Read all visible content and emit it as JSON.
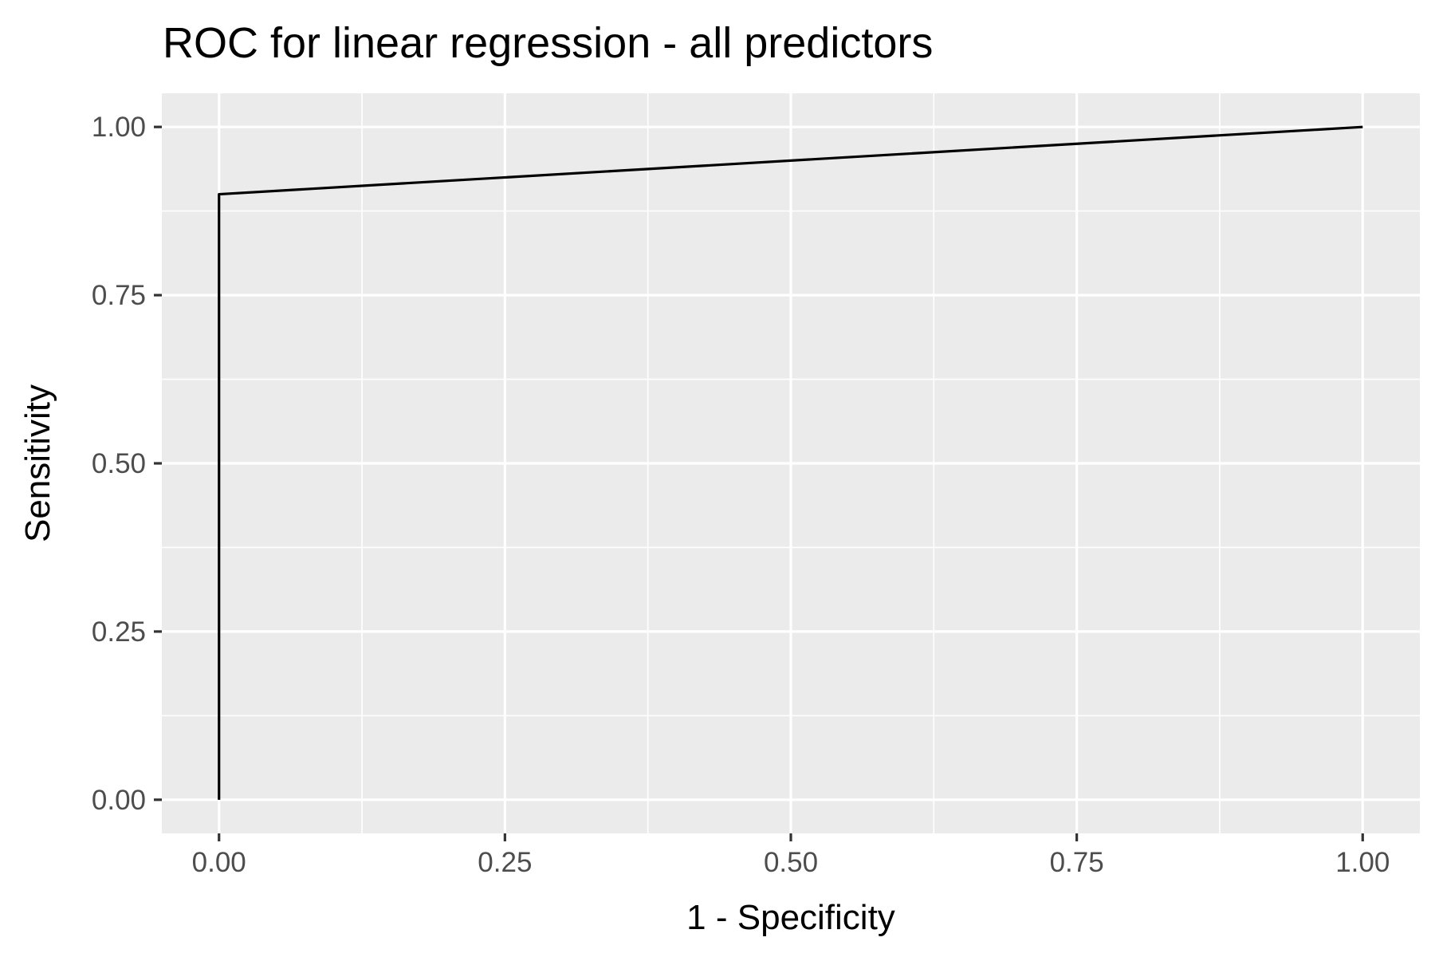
{
  "chart_data": {
    "type": "line",
    "title": "ROC for linear regression - all predictors",
    "xlabel": "1 - Specificity",
    "ylabel": "Sensitivity",
    "xlim": [
      -0.05,
      1.05
    ],
    "ylim": [
      -0.05,
      1.05
    ],
    "x_ticks": [
      0,
      0.25,
      0.5,
      0.75,
      1
    ],
    "x_tick_labels": [
      "0.00",
      "0.25",
      "0.50",
      "0.75",
      "1.00"
    ],
    "y_ticks": [
      0,
      0.25,
      0.5,
      0.75,
      1
    ],
    "y_tick_labels": [
      "0.00",
      "0.25",
      "0.50",
      "0.75",
      "1.00"
    ],
    "grid": true,
    "legend": "none",
    "colors": {
      "panel_background": "#ebebeb",
      "grid": "#ffffff",
      "line": "#000000",
      "tick_mark": "#333333",
      "tick_label": "#4d4d4d"
    },
    "series": [
      {
        "x": [
          0,
          0,
          1
        ],
        "y": [
          0,
          0.9,
          1
        ]
      }
    ]
  }
}
